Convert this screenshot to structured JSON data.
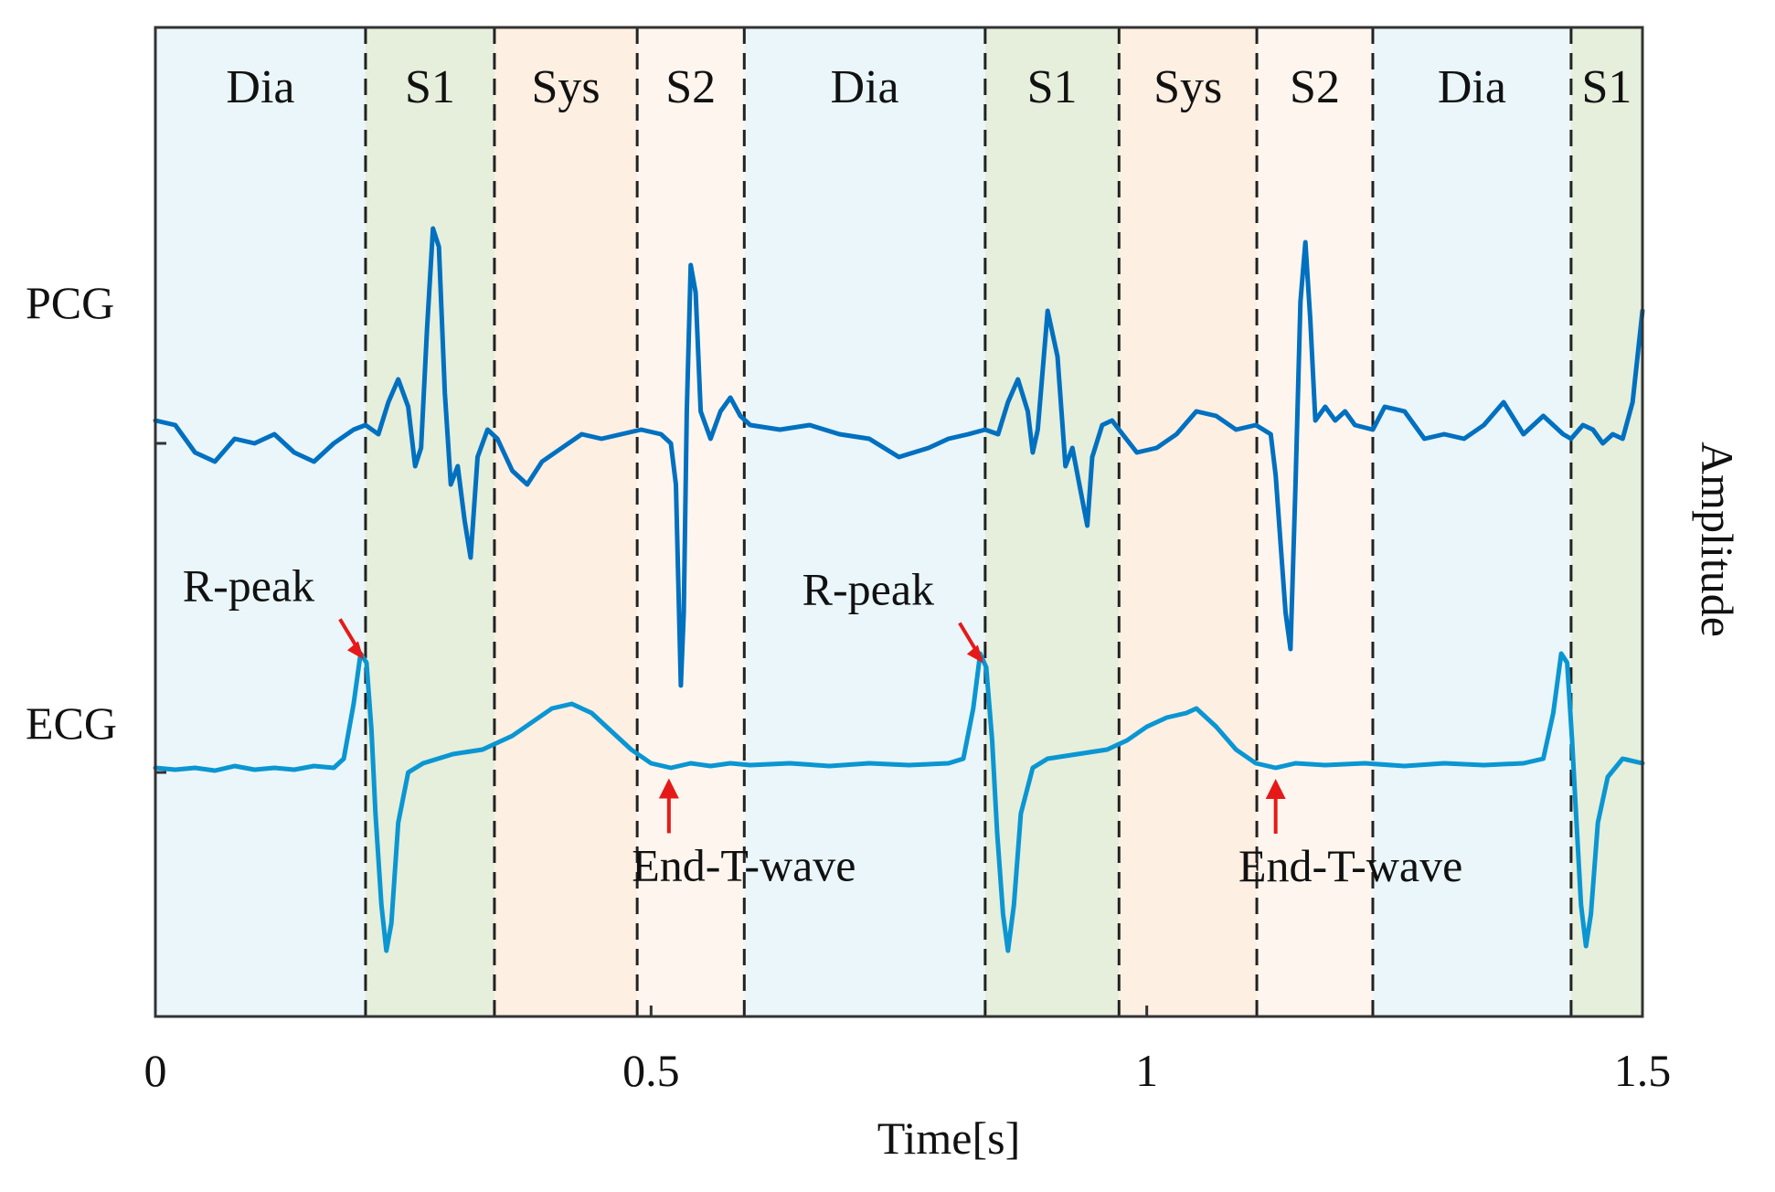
{
  "chart_data": {
    "type": "line",
    "title": "",
    "xlabel": "Time[s]",
    "ylabel": "Amplitude",
    "xlim": [
      0,
      1.5
    ],
    "xticks": [
      {
        "value": 0,
        "label": "0"
      },
      {
        "value": 0.5,
        "label": "0.5"
      },
      {
        "value": 1,
        "label": "1"
      },
      {
        "value": 1.5,
        "label": "1.5"
      }
    ],
    "grid": false,
    "signal_labels": {
      "pcg": "PCG",
      "ecg": "ECG"
    },
    "segments": [
      {
        "label": "Dia",
        "start": 0.0,
        "end": 0.212,
        "color": "#eaf6fa"
      },
      {
        "label": "S1",
        "start": 0.212,
        "end": 0.342,
        "color": "#e6eedc"
      },
      {
        "label": "Sys",
        "start": 0.342,
        "end": 0.486,
        "color": "#fdefe2"
      },
      {
        "label": "S2",
        "start": 0.486,
        "end": 0.594,
        "color": "#fef6ee"
      },
      {
        "label": "Dia",
        "start": 0.594,
        "end": 0.837,
        "color": "#eaf6fa"
      },
      {
        "label": "S1",
        "start": 0.837,
        "end": 0.972,
        "color": "#e6eedc"
      },
      {
        "label": "Sys",
        "start": 0.972,
        "end": 1.111,
        "color": "#fdefe2"
      },
      {
        "label": "S2",
        "start": 1.111,
        "end": 1.228,
        "color": "#fef6ee"
      },
      {
        "label": "Dia",
        "start": 1.228,
        "end": 1.428,
        "color": "#eaf6fa"
      },
      {
        "label": "S1",
        "start": 1.428,
        "end": 1.5,
        "color": "#e6eedc"
      }
    ],
    "boundaries": [
      0.212,
      0.342,
      0.486,
      0.594,
      0.837,
      0.972,
      1.111,
      1.228,
      1.428
    ],
    "series": [
      {
        "name": "PCG",
        "color": "#0070c0",
        "offset": 1.0,
        "points": [
          [
            0.0,
            0.1
          ],
          [
            0.02,
            0.05
          ],
          [
            0.04,
            -0.25
          ],
          [
            0.06,
            -0.35
          ],
          [
            0.08,
            -0.1
          ],
          [
            0.1,
            -0.15
          ],
          [
            0.12,
            -0.05
          ],
          [
            0.14,
            -0.25
          ],
          [
            0.16,
            -0.35
          ],
          [
            0.18,
            -0.15
          ],
          [
            0.2,
            0.0
          ],
          [
            0.212,
            0.05
          ],
          [
            0.225,
            -0.05
          ],
          [
            0.235,
            0.3
          ],
          [
            0.245,
            0.55
          ],
          [
            0.255,
            0.25
          ],
          [
            0.262,
            -0.4
          ],
          [
            0.268,
            -0.2
          ],
          [
            0.274,
            1.1
          ],
          [
            0.28,
            2.2
          ],
          [
            0.286,
            2.0
          ],
          [
            0.292,
            0.4
          ],
          [
            0.298,
            -0.6
          ],
          [
            0.305,
            -0.4
          ],
          [
            0.312,
            -1.0
          ],
          [
            0.318,
            -1.4
          ],
          [
            0.325,
            -0.3
          ],
          [
            0.335,
            0.0
          ],
          [
            0.345,
            -0.1
          ],
          [
            0.36,
            -0.45
          ],
          [
            0.375,
            -0.6
          ],
          [
            0.39,
            -0.35
          ],
          [
            0.41,
            -0.2
          ],
          [
            0.43,
            -0.05
          ],
          [
            0.45,
            -0.1
          ],
          [
            0.47,
            -0.05
          ],
          [
            0.49,
            0.0
          ],
          [
            0.51,
            -0.05
          ],
          [
            0.52,
            -0.15
          ],
          [
            0.525,
            -0.6
          ],
          [
            0.53,
            -2.8
          ],
          [
            0.533,
            -2.0
          ],
          [
            0.536,
            0.2
          ],
          [
            0.54,
            1.8
          ],
          [
            0.545,
            1.5
          ],
          [
            0.55,
            0.2
          ],
          [
            0.56,
            -0.1
          ],
          [
            0.57,
            0.2
          ],
          [
            0.58,
            0.35
          ],
          [
            0.59,
            0.15
          ],
          [
            0.6,
            0.05
          ],
          [
            0.63,
            0.0
          ],
          [
            0.66,
            0.05
          ],
          [
            0.69,
            -0.05
          ],
          [
            0.72,
            -0.1
          ],
          [
            0.75,
            -0.3
          ],
          [
            0.78,
            -0.2
          ],
          [
            0.8,
            -0.1
          ],
          [
            0.82,
            -0.05
          ],
          [
            0.837,
            0.0
          ],
          [
            0.85,
            -0.05
          ],
          [
            0.86,
            0.3
          ],
          [
            0.87,
            0.55
          ],
          [
            0.88,
            0.2
          ],
          [
            0.885,
            -0.25
          ],
          [
            0.89,
            0.0
          ],
          [
            0.9,
            1.3
          ],
          [
            0.91,
            0.8
          ],
          [
            0.918,
            -0.4
          ],
          [
            0.925,
            -0.2
          ],
          [
            0.932,
            -0.6
          ],
          [
            0.94,
            -1.05
          ],
          [
            0.945,
            -0.3
          ],
          [
            0.955,
            0.05
          ],
          [
            0.965,
            0.1
          ],
          [
            0.972,
            0.0
          ],
          [
            0.99,
            -0.25
          ],
          [
            1.01,
            -0.2
          ],
          [
            1.03,
            -0.05
          ],
          [
            1.05,
            0.2
          ],
          [
            1.07,
            0.15
          ],
          [
            1.09,
            0.0
          ],
          [
            1.11,
            0.05
          ],
          [
            1.125,
            -0.05
          ],
          [
            1.13,
            -0.5
          ],
          [
            1.14,
            -2.0
          ],
          [
            1.145,
            -2.4
          ],
          [
            1.15,
            -0.6
          ],
          [
            1.155,
            1.4
          ],
          [
            1.16,
            2.05
          ],
          [
            1.165,
            1.2
          ],
          [
            1.17,
            0.1
          ],
          [
            1.18,
            0.25
          ],
          [
            1.19,
            0.1
          ],
          [
            1.2,
            0.2
          ],
          [
            1.21,
            0.05
          ],
          [
            1.228,
            0.0
          ],
          [
            1.24,
            0.25
          ],
          [
            1.26,
            0.2
          ],
          [
            1.28,
            -0.1
          ],
          [
            1.3,
            -0.05
          ],
          [
            1.32,
            -0.1
          ],
          [
            1.34,
            0.05
          ],
          [
            1.36,
            0.3
          ],
          [
            1.38,
            -0.05
          ],
          [
            1.4,
            0.15
          ],
          [
            1.42,
            -0.05
          ],
          [
            1.428,
            -0.1
          ],
          [
            1.44,
            0.05
          ],
          [
            1.45,
            0.0
          ],
          [
            1.46,
            -0.15
          ],
          [
            1.47,
            -0.05
          ],
          [
            1.48,
            -0.1
          ],
          [
            1.49,
            0.3
          ],
          [
            1.5,
            1.3
          ]
        ]
      },
      {
        "name": "ECG",
        "color": "#0a96d2",
        "offset": -2.6,
        "points": [
          [
            0.0,
            -0.1
          ],
          [
            0.02,
            -0.12
          ],
          [
            0.04,
            -0.1
          ],
          [
            0.06,
            -0.13
          ],
          [
            0.08,
            -0.08
          ],
          [
            0.1,
            -0.12
          ],
          [
            0.12,
            -0.1
          ],
          [
            0.14,
            -0.12
          ],
          [
            0.16,
            -0.08
          ],
          [
            0.18,
            -0.1
          ],
          [
            0.19,
            0.0
          ],
          [
            0.2,
            0.6
          ],
          [
            0.207,
            1.15
          ],
          [
            0.213,
            1.05
          ],
          [
            0.218,
            0.3
          ],
          [
            0.222,
            -0.6
          ],
          [
            0.228,
            -1.6
          ],
          [
            0.233,
            -2.1
          ],
          [
            0.238,
            -1.8
          ],
          [
            0.245,
            -0.7
          ],
          [
            0.255,
            -0.15
          ],
          [
            0.27,
            -0.05
          ],
          [
            0.3,
            0.05
          ],
          [
            0.33,
            0.1
          ],
          [
            0.36,
            0.25
          ],
          [
            0.38,
            0.4
          ],
          [
            0.4,
            0.55
          ],
          [
            0.42,
            0.6
          ],
          [
            0.44,
            0.5
          ],
          [
            0.46,
            0.3
          ],
          [
            0.48,
            0.1
          ],
          [
            0.5,
            -0.05
          ],
          [
            0.52,
            -0.1
          ],
          [
            0.54,
            -0.05
          ],
          [
            0.56,
            -0.08
          ],
          [
            0.58,
            -0.05
          ],
          [
            0.6,
            -0.07
          ],
          [
            0.64,
            -0.05
          ],
          [
            0.68,
            -0.08
          ],
          [
            0.72,
            -0.05
          ],
          [
            0.76,
            -0.07
          ],
          [
            0.8,
            -0.05
          ],
          [
            0.815,
            0.0
          ],
          [
            0.825,
            0.55
          ],
          [
            0.832,
            1.15
          ],
          [
            0.838,
            1.0
          ],
          [
            0.844,
            0.2
          ],
          [
            0.849,
            -0.8
          ],
          [
            0.855,
            -1.7
          ],
          [
            0.86,
            -2.1
          ],
          [
            0.866,
            -1.6
          ],
          [
            0.873,
            -0.6
          ],
          [
            0.885,
            -0.1
          ],
          [
            0.9,
            0.0
          ],
          [
            0.93,
            0.05
          ],
          [
            0.96,
            0.1
          ],
          [
            0.98,
            0.2
          ],
          [
            1.0,
            0.35
          ],
          [
            1.02,
            0.45
          ],
          [
            1.04,
            0.5
          ],
          [
            1.05,
            0.55
          ],
          [
            1.07,
            0.35
          ],
          [
            1.09,
            0.1
          ],
          [
            1.11,
            -0.05
          ],
          [
            1.13,
            -0.1
          ],
          [
            1.15,
            -0.05
          ],
          [
            1.18,
            -0.07
          ],
          [
            1.22,
            -0.05
          ],
          [
            1.26,
            -0.08
          ],
          [
            1.3,
            -0.05
          ],
          [
            1.34,
            -0.07
          ],
          [
            1.38,
            -0.05
          ],
          [
            1.4,
            0.0
          ],
          [
            1.41,
            0.5
          ],
          [
            1.418,
            1.15
          ],
          [
            1.424,
            1.05
          ],
          [
            1.429,
            0.2
          ],
          [
            1.433,
            -0.6
          ],
          [
            1.438,
            -1.6
          ],
          [
            1.443,
            -2.05
          ],
          [
            1.448,
            -1.7
          ],
          [
            1.455,
            -0.7
          ],
          [
            1.465,
            -0.2
          ],
          [
            1.48,
            0.0
          ],
          [
            1.5,
            -0.05
          ]
        ]
      }
    ],
    "annotations": [
      {
        "text": "R-peak",
        "x": 0.212,
        "series": "ECG",
        "position": "above-left"
      },
      {
        "text": "End-T-wave",
        "x": 0.518,
        "series": "ECG",
        "position": "below"
      },
      {
        "text": "R-peak",
        "x": 0.837,
        "series": "ECG",
        "position": "above-left"
      },
      {
        "text": "End-T-wave",
        "x": 1.13,
        "series": "ECG",
        "position": "below"
      }
    ],
    "colors": {
      "annotation_arrow": "#e61919",
      "boundary": "#222222",
      "axis": "#333333"
    }
  }
}
